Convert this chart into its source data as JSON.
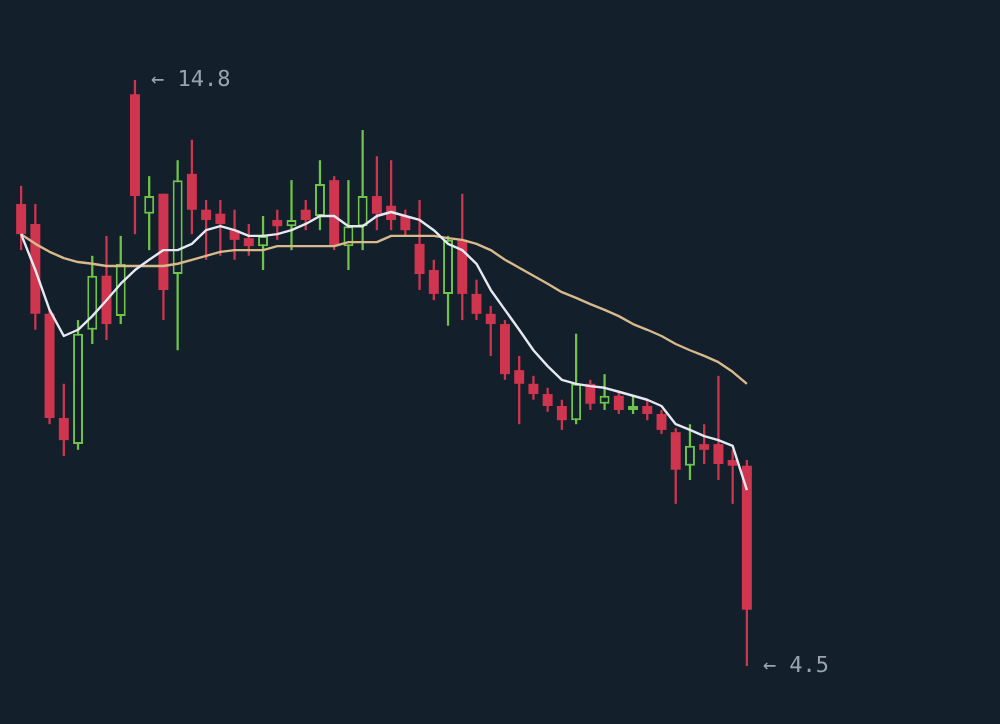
{
  "chart_data": {
    "type": "candlestick",
    "categories": [
      null,
      null,
      null,
      null,
      null,
      null,
      null,
      null,
      null,
      null,
      null,
      null,
      null,
      null,
      null,
      null,
      null,
      null,
      null,
      null,
      null,
      null,
      null,
      null,
      null,
      null,
      null,
      null,
      null,
      null,
      null,
      null,
      null,
      null,
      null,
      null,
      null,
      null,
      null,
      null,
      null,
      null,
      null,
      null,
      null,
      null,
      null,
      null,
      null,
      null,
      null,
      null
    ],
    "ohlc": [
      [
        12.62,
        12.94,
        11.81,
        12.09
      ],
      [
        12.27,
        12.62,
        10.41,
        10.69
      ],
      [
        10.69,
        10.76,
        8.75,
        8.86
      ],
      [
        8.86,
        9.46,
        8.19,
        8.47
      ],
      [
        8.4,
        10.58,
        8.3,
        10.34
      ],
      [
        10.41,
        11.71,
        10.16,
        11.36
      ],
      [
        11.36,
        12.06,
        10.23,
        10.51
      ],
      [
        10.65,
        12.06,
        10.51,
        11.57
      ],
      [
        14.55,
        14.8,
        12.09,
        12.76
      ],
      [
        12.45,
        13.11,
        11.81,
        12.76
      ],
      [
        12.8,
        12.8,
        10.58,
        11.11
      ],
      [
        11.39,
        13.39,
        10.05,
        13.04
      ],
      [
        13.15,
        13.75,
        12.09,
        12.52
      ],
      [
        12.52,
        12.69,
        11.64,
        12.34
      ],
      [
        12.45,
        12.69,
        11.71,
        12.27
      ],
      [
        12.16,
        12.52,
        11.64,
        11.99
      ],
      [
        12.02,
        12.27,
        11.71,
        11.88
      ],
      [
        11.88,
        12.41,
        11.46,
        12.06
      ],
      [
        12.34,
        12.52,
        11.99,
        12.23
      ],
      [
        12.23,
        13.04,
        11.81,
        12.34
      ],
      [
        12.52,
        12.69,
        12.16,
        12.34
      ],
      [
        12.41,
        13.39,
        12.16,
        12.97
      ],
      [
        13.04,
        13.11,
        11.81,
        11.88
      ],
      [
        11.88,
        13.04,
        11.46,
        12.23
      ],
      [
        12.23,
        13.92,
        11.81,
        12.76
      ],
      [
        12.76,
        13.46,
        12.16,
        12.45
      ],
      [
        12.59,
        13.39,
        12.16,
        12.34
      ],
      [
        12.41,
        12.52,
        12.06,
        12.16
      ],
      [
        11.92,
        12.69,
        11.11,
        11.39
      ],
      [
        11.46,
        11.64,
        10.93,
        11.04
      ],
      [
        11.04,
        12.06,
        10.48,
        11.99
      ],
      [
        11.99,
        12.8,
        10.58,
        11.04
      ],
      [
        11.04,
        11.29,
        10.58,
        10.69
      ],
      [
        10.69,
        10.83,
        9.95,
        10.51
      ],
      [
        10.51,
        10.58,
        9.53,
        9.63
      ],
      [
        9.7,
        9.95,
        8.75,
        9.46
      ],
      [
        9.46,
        9.6,
        9.18,
        9.28
      ],
      [
        9.28,
        9.39,
        8.97,
        9.07
      ],
      [
        9.07,
        9.18,
        8.65,
        8.82
      ],
      [
        8.82,
        10.34,
        8.75,
        9.46
      ],
      [
        9.46,
        9.53,
        9.0,
        9.11
      ],
      [
        9.11,
        9.63,
        9.0,
        9.25
      ],
      [
        9.25,
        9.32,
        8.93,
        9.0
      ],
      [
        9.0,
        9.25,
        8.93,
        9.07
      ],
      [
        9.07,
        9.18,
        8.82,
        8.93
      ],
      [
        8.93,
        9.0,
        8.58,
        8.65
      ],
      [
        8.61,
        8.68,
        7.35,
        7.95
      ],
      [
        8.02,
        8.75,
        7.77,
        8.37
      ],
      [
        8.4,
        8.75,
        8.05,
        8.3
      ],
      [
        8.4,
        9.6,
        7.77,
        8.05
      ],
      [
        8.12,
        8.3,
        7.35,
        8.02
      ],
      [
        8.02,
        8.12,
        4.5,
        5.49
      ]
    ],
    "colors": [
      "#d0354f",
      "#d0354f",
      "#d0354f",
      "#d0354f",
      "#6fc34a",
      "#6fc34a",
      "#d0354f",
      "#6fc34a",
      "#d0354f",
      "#6fc34a",
      "#d0354f",
      "#6fc34a",
      "#d0354f",
      "#d0354f",
      "#d0354f",
      "#d0354f",
      "#d0354f",
      "#6fc34a",
      "#d0354f",
      "#6fc34a",
      "#d0354f",
      "#6fc34a",
      "#d0354f",
      "#6fc34a",
      "#6fc34a",
      "#d0354f",
      "#d0354f",
      "#d0354f",
      "#d0354f",
      "#d0354f",
      "#6fc34a",
      "#d0354f",
      "#d0354f",
      "#d0354f",
      "#d0354f",
      "#d0354f",
      "#d0354f",
      "#d0354f",
      "#d0354f",
      "#6fc34a",
      "#d0354f",
      "#6fc34a",
      "#d0354f",
      "#6fc34a",
      "#d0354f",
      "#d0354f",
      "#d0354f",
      "#6fc34a",
      "#d0354f",
      "#d0354f",
      "#d0354f",
      "#d0354f"
    ],
    "series": [
      {
        "type": "line",
        "color": "#e4e8f0",
        "values": [
          12.09,
          11.46,
          10.76,
          10.3,
          10.41,
          10.65,
          10.93,
          11.22,
          11.46,
          11.64,
          11.81,
          11.81,
          11.92,
          12.16,
          12.23,
          12.16,
          12.06,
          12.06,
          12.09,
          12.16,
          12.27,
          12.41,
          12.41,
          12.23,
          12.23,
          12.41,
          12.48,
          12.41,
          12.34,
          12.16,
          11.92,
          11.81,
          11.57,
          11.11,
          10.76,
          10.41,
          10.05,
          9.77,
          9.53,
          9.46,
          9.42,
          9.39,
          9.32,
          9.25,
          9.18,
          9.07,
          8.75,
          8.65,
          8.54,
          8.47,
          8.37,
          7.59
        ]
      },
      {
        "type": "line",
        "color": "#d8b98c",
        "values": [
          12.09,
          11.92,
          11.78,
          11.67,
          11.6,
          11.57,
          11.53,
          11.53,
          11.53,
          11.53,
          11.53,
          11.57,
          11.64,
          11.71,
          11.78,
          11.81,
          11.81,
          11.81,
          11.88,
          11.88,
          11.88,
          11.88,
          11.88,
          11.95,
          11.95,
          11.95,
          12.06,
          12.06,
          12.06,
          12.06,
          12.02,
          11.99,
          11.92,
          11.81,
          11.64,
          11.5,
          11.36,
          11.22,
          11.07,
          10.97,
          10.86,
          10.76,
          10.65,
          10.51,
          10.41,
          10.3,
          10.16,
          10.05,
          9.95,
          9.84,
          9.67,
          9.46
        ]
      }
    ],
    "annotations": [
      "← 14.8",
      "← 4.5"
    ],
    "legend": false,
    "grid": false,
    "tick_labels": false,
    "marker": "none",
    "line_style": "solid"
  }
}
